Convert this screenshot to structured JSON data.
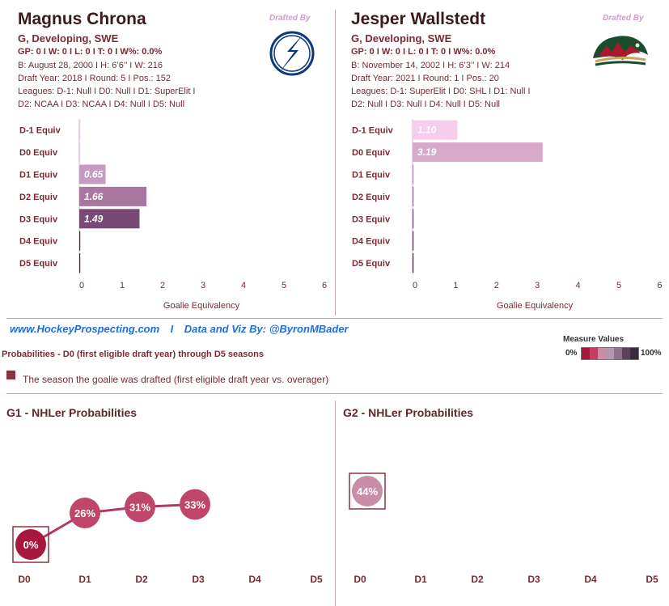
{
  "players": [
    {
      "name": "Magnus Chrona",
      "position_line": "G, Developing, SWE",
      "stats_line": "GP: 0 I W: 0 I L: 0  I T: 0  I W%: 0.0%",
      "bio_line": "B: August 28, 2000 I H: 6’6’’ I W: 216",
      "draft_line": "Draft Year: 2018 I Round: 5 I Pos.: 152",
      "leagues_line1": "Leagues: D-1: Null I D0: Null I D1: SuperElit I",
      "leagues_line2": "D2: NCAA I D3: NCAA I D4: Null I D5: Null",
      "drafted_by": "Drafted By",
      "team_logo": "tampa-bay-lightning-logo"
    },
    {
      "name": "Jesper Wallstedt",
      "position_line": "G, Developing, SWE",
      "stats_line": "GP: 0 I W: 0 I L: 0  I T: 0  I W%: 0.0%",
      "bio_line": "B: November 14, 2002 I H: 6’3’’ I W: 214",
      "draft_line": "Draft Year: 2021 I Round: 1 I Pos.: 20",
      "leagues_line1": "Leagues: D-1: SuperElit I D0: SHL I D1: Null I",
      "leagues_line2": "D2: Null I D3: Null I D4: Null I D5: Null",
      "drafted_by": "Drafted By",
      "team_logo": "minnesota-wild-logo"
    }
  ],
  "equiv_charts": {
    "categories": [
      "D-1 Equiv",
      "D0 Equiv",
      "D1 Equiv",
      "D2 Equiv",
      "D3 Equiv",
      "D4 Equiv",
      "D5 Equiv"
    ],
    "xlabel": "Goalie Equivalency",
    "ticks": [
      "0",
      "1",
      "2",
      "3",
      "4",
      "5",
      "6"
    ]
  },
  "credits": {
    "site": "www.HockeyProspecting.com",
    "separator": "I",
    "byline": "Data and Viz By: @ByronMBader"
  },
  "probabilities_header": "Probabilities - D0 (first eligible draft year) through D5 seasons",
  "drafted_legend_text": "The season the goalie was drafted (first eligible draft year vs. overager)",
  "measure_legend": {
    "title": "Measure Values",
    "min": "0%",
    "max": "100%"
  },
  "colors": {
    "drafted_marker": "#8b3340",
    "accent_text": "#7a2a35",
    "link": "#1e6fd9",
    "divider": "#c7a7b5",
    "scale": [
      "#a8173c",
      "#c23f63",
      "#c98ea7",
      "#b596b1",
      "#8e7089",
      "#5a4358",
      "#3b2940"
    ]
  },
  "probability_panels": [
    {
      "title": "G1 - NHLer Probabilities",
      "categories": [
        "D0",
        "D1",
        "D2",
        "D3",
        "D4",
        "D5"
      ]
    },
    {
      "title": "G2 - NHLer Probabilities",
      "categories": [
        "D0",
        "D1",
        "D2",
        "D3",
        "D4",
        "D5"
      ]
    }
  ],
  "chart_data": [
    {
      "type": "bar",
      "title": "Magnus Chrona",
      "xlabel": "Goalie Equivalency",
      "categories": [
        "D-1 Equiv",
        "D0 Equiv",
        "D1 Equiv",
        "D2 Equiv",
        "D3 Equiv",
        "D4 Equiv",
        "D5 Equiv"
      ],
      "values": [
        0,
        0,
        0.65,
        1.66,
        1.49,
        0,
        0
      ],
      "labels": [
        "",
        "",
        "0.65",
        "1.66",
        "1.49",
        "",
        ""
      ],
      "colors": [
        "#e3c7de",
        "#e3c7de",
        "#c69bc0",
        "#a8769f",
        "#7a4875",
        "#3a2a3a",
        "#3a2a3a"
      ],
      "xlim": [
        0,
        6
      ]
    },
    {
      "type": "bar",
      "title": "Jesper Wallstedt",
      "xlabel": "Goalie Equivalency",
      "categories": [
        "D-1 Equiv",
        "D0 Equiv",
        "D1 Equiv",
        "D2 Equiv",
        "D3 Equiv",
        "D4 Equiv",
        "D5 Equiv"
      ],
      "values": [
        1.1,
        3.19,
        0,
        0,
        0,
        0,
        0
      ],
      "labels": [
        "1.10",
        "3.19",
        "",
        "",
        "",
        "",
        ""
      ],
      "colors": [
        "#f7cdeb",
        "#d9a9ca",
        "#b08ab0",
        "#8a6a8a",
        "#6a4c6a",
        "#4a3348",
        "#3a2a3a"
      ],
      "xlim": [
        0,
        6
      ]
    },
    {
      "type": "line",
      "title": "G1 - NHLer Probabilities",
      "categories": [
        "D0",
        "D1",
        "D2",
        "D3",
        "D4",
        "D5"
      ],
      "values": [
        0,
        26,
        31,
        33,
        null,
        null
      ],
      "labels": [
        "0%",
        "26%",
        "31%",
        "33%",
        "",
        ""
      ],
      "drafted_index": 0,
      "colors": [
        "#a8173c",
        "#c0456b",
        "#c0456b",
        "#c0456b"
      ]
    },
    {
      "type": "scatter",
      "title": "G2 - NHLer Probabilities",
      "categories": [
        "D0",
        "D1",
        "D2",
        "D3",
        "D4",
        "D5"
      ],
      "values": [
        44,
        null,
        null,
        null,
        null,
        null
      ],
      "labels": [
        "44%",
        "",
        "",
        "",
        "",
        ""
      ],
      "drafted_index": 0,
      "colors": [
        "#c98ea7"
      ]
    }
  ]
}
